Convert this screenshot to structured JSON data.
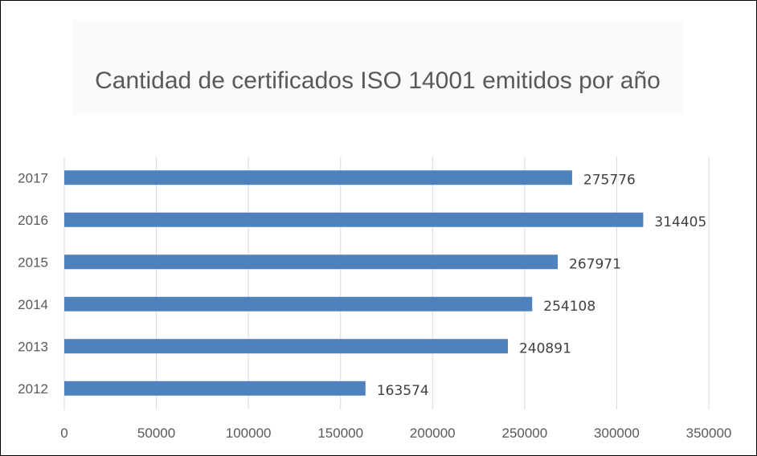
{
  "chart_data": {
    "type": "bar",
    "orientation": "horizontal",
    "title": "Cantidad de certificados ISO 14001 emitidos por año",
    "categories": [
      "2012",
      "2013",
      "2014",
      "2015",
      "2016",
      "2017"
    ],
    "values": [
      163574,
      240891,
      254108,
      267971,
      314405,
      275776
    ],
    "data_labels": [
      "163574",
      "240891",
      "254108",
      "267971",
      "314405",
      "275776"
    ],
    "xlim": [
      0,
      350000
    ],
    "xticks": [
      0,
      50000,
      100000,
      150000,
      200000,
      250000,
      300000,
      350000
    ],
    "xtick_labels": [
      "0",
      "50000",
      "100000",
      "150000",
      "200000",
      "250000",
      "300000",
      "350000"
    ],
    "grid": "vertical",
    "legend": "none",
    "bar_color": "#4F81BD"
  }
}
